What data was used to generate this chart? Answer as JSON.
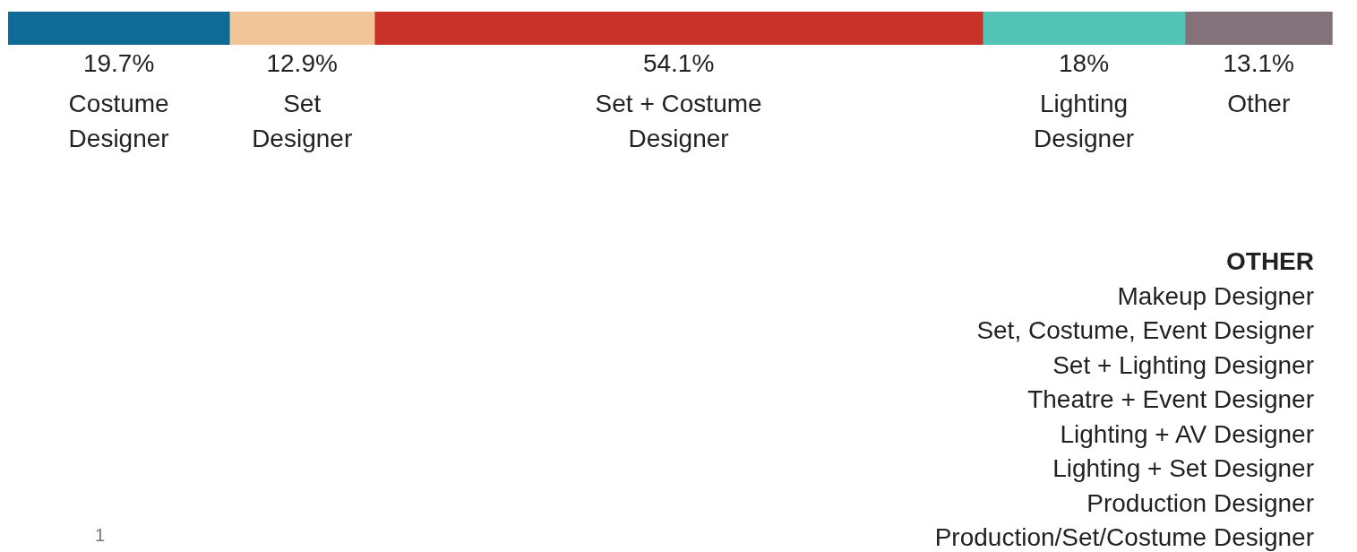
{
  "chart_data": {
    "type": "bar",
    "orientation": "horizontal",
    "stacked": true,
    "legend": false,
    "categories": [
      null
    ],
    "series": [
      {
        "name": "Costume Designer",
        "color": "#0f6a96",
        "values": [
          19.7
        ],
        "value_labels": [
          "19.7%"
        ]
      },
      {
        "name": "Set Designer",
        "color": "#f2c599",
        "values": [
          12.9
        ],
        "value_labels": [
          "12.9%"
        ]
      },
      {
        "name": "Set + Costume Designer",
        "color": "#c93228",
        "values": [
          54.1
        ],
        "value_labels": [
          "54.1%"
        ]
      },
      {
        "name": "Lighting Designer",
        "color": "#52c3b4",
        "values": [
          18
        ],
        "value_labels": [
          "18%"
        ]
      },
      {
        "name": "Other",
        "color": "#83727a",
        "values": [
          13.1
        ],
        "value_labels": [
          "13.1%"
        ]
      }
    ],
    "annotations": [
      "OTHER",
      "Makeup Designer",
      "Set, Costume, Event Designer",
      "Set + Lighting Designer",
      "Theatre + Event Designer",
      "Lighting + AV Designer",
      "Lighting + Set Designer",
      "Production Designer",
      "Production/Set/Costume Designer",
      "1"
    ]
  }
}
